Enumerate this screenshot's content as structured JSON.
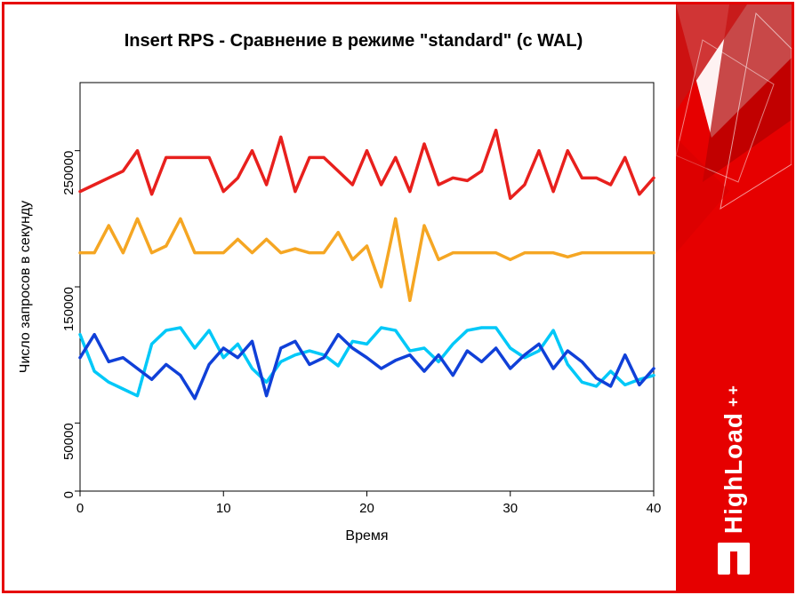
{
  "chart": {
    "type": "line",
    "title": "Insert RPS - Сравнение в режиме \"standard\" (с WAL)",
    "title_fontsize": 20,
    "xlabel": "Время",
    "ylabel": "Число запросов в секунду",
    "label_fontsize": 16,
    "tick_fontsize": 15,
    "xlim": [
      0,
      40
    ],
    "ylim": [
      0,
      300000
    ],
    "xticks": [
      0,
      10,
      20,
      30,
      40
    ],
    "yticks": [
      0,
      50000,
      150000,
      250000
    ],
    "background_color": "#ffffff",
    "axis_color": "#000000",
    "line_width": 3.5,
    "series": [
      {
        "name": "red",
        "color": "#e8201d",
        "x": [
          0,
          1,
          2,
          3,
          4,
          5,
          6,
          7,
          8,
          9,
          10,
          11,
          12,
          13,
          14,
          15,
          16,
          17,
          18,
          19,
          20,
          21,
          22,
          23,
          24,
          25,
          26,
          27,
          28,
          29,
          30,
          31,
          32,
          33,
          34,
          35,
          36,
          37,
          38,
          39,
          40
        ],
        "y": [
          220000,
          225000,
          230000,
          235000,
          250000,
          218000,
          245000,
          245000,
          245000,
          245000,
          220000,
          230000,
          250000,
          225000,
          260000,
          220000,
          245000,
          245000,
          235000,
          225000,
          250000,
          225000,
          245000,
          220000,
          255000,
          225000,
          230000,
          228000,
          235000,
          265000,
          215000,
          225000,
          250000,
          220000,
          250000,
          230000,
          230000,
          225000,
          245000,
          218000,
          230000
        ]
      },
      {
        "name": "orange",
        "color": "#f5a623",
        "x": [
          0,
          1,
          2,
          3,
          4,
          5,
          6,
          7,
          8,
          9,
          10,
          11,
          12,
          13,
          14,
          15,
          16,
          17,
          18,
          19,
          20,
          21,
          22,
          23,
          24,
          25,
          26,
          27,
          28,
          29,
          30,
          31,
          32,
          33,
          34,
          35,
          36,
          37,
          38,
          39,
          40
        ],
        "y": [
          175000,
          175000,
          195000,
          175000,
          200000,
          175000,
          180000,
          200000,
          175000,
          175000,
          175000,
          185000,
          175000,
          185000,
          175000,
          178000,
          175000,
          175000,
          190000,
          170000,
          180000,
          150000,
          200000,
          140000,
          195000,
          170000,
          175000,
          175000,
          175000,
          175000,
          170000,
          175000,
          175000,
          175000,
          172000,
          175000,
          175000,
          175000,
          175000,
          175000,
          175000
        ]
      },
      {
        "name": "cyan",
        "color": "#00c8f8",
        "x": [
          0,
          1,
          2,
          3,
          4,
          5,
          6,
          7,
          8,
          9,
          10,
          11,
          12,
          13,
          14,
          15,
          16,
          17,
          18,
          19,
          20,
          21,
          22,
          23,
          24,
          25,
          26,
          27,
          28,
          29,
          30,
          31,
          32,
          33,
          34,
          35,
          36,
          37,
          38,
          39,
          40
        ],
        "y": [
          115000,
          88000,
          80000,
          75000,
          70000,
          108000,
          118000,
          120000,
          105000,
          118000,
          98000,
          108000,
          90000,
          80000,
          95000,
          100000,
          103000,
          100000,
          92000,
          110000,
          108000,
          120000,
          118000,
          103000,
          105000,
          95000,
          108000,
          118000,
          120000,
          120000,
          105000,
          98000,
          103000,
          118000,
          93000,
          80000,
          77000,
          88000,
          78000,
          82000,
          85000
        ]
      },
      {
        "name": "blue",
        "color": "#1040d8",
        "x": [
          0,
          1,
          2,
          3,
          4,
          5,
          6,
          7,
          8,
          9,
          10,
          11,
          12,
          13,
          14,
          15,
          16,
          17,
          18,
          19,
          20,
          21,
          22,
          23,
          24,
          25,
          26,
          27,
          28,
          29,
          30,
          31,
          32,
          33,
          34,
          35,
          36,
          37,
          38,
          39,
          40
        ],
        "y": [
          98000,
          115000,
          95000,
          98000,
          90000,
          82000,
          93000,
          85000,
          68000,
          93000,
          105000,
          98000,
          110000,
          70000,
          105000,
          110000,
          93000,
          98000,
          115000,
          105000,
          98000,
          90000,
          96000,
          100000,
          88000,
          100000,
          85000,
          103000,
          95000,
          105000,
          90000,
          100000,
          108000,
          90000,
          103000,
          95000,
          83000,
          77000,
          100000,
          78000,
          90000
        ]
      }
    ]
  },
  "sidebar": {
    "brand_text": "HighLoad",
    "brand_suffix": "++",
    "brand_color": "#e60000",
    "text_color": "#ffffff"
  }
}
